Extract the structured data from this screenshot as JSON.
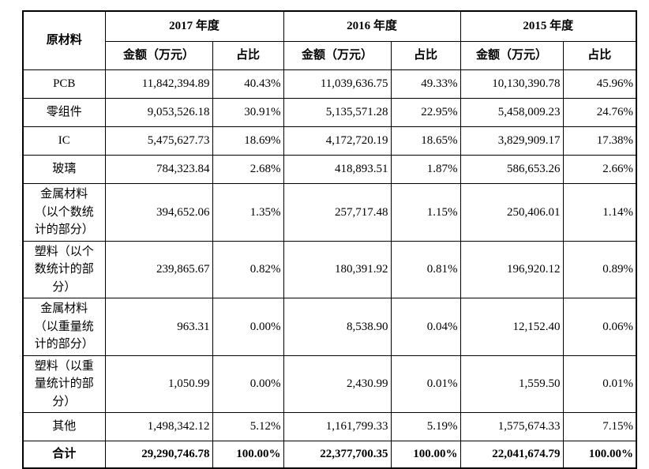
{
  "table": {
    "corner_header": "原材料",
    "year_groups": [
      {
        "year": "2017 年度",
        "amount_header": "金额（万元）",
        "ratio_header": "占比"
      },
      {
        "year": "2016 年度",
        "amount_header": "金额（万元）",
        "ratio_header": "占比"
      },
      {
        "year": "2015 年度",
        "amount_header": "金额（万元）",
        "ratio_header": "占比"
      }
    ],
    "rows": [
      {
        "label": "PCB",
        "values": [
          "11,842,394.89",
          "40.43%",
          "11,039,636.75",
          "49.33%",
          "10,130,390.78",
          "45.96%"
        ]
      },
      {
        "label": "零组件",
        "values": [
          "9,053,526.18",
          "30.91%",
          "5,135,571.28",
          "22.95%",
          "5,458,009.23",
          "24.76%"
        ]
      },
      {
        "label": "IC",
        "values": [
          "5,475,627.73",
          "18.69%",
          "4,172,720.19",
          "18.65%",
          "3,829,909.17",
          "17.38%"
        ]
      },
      {
        "label": "玻璃",
        "values": [
          "784,323.84",
          "2.68%",
          "418,893.51",
          "1.87%",
          "586,653.26",
          "2.66%"
        ]
      },
      {
        "label": "金属材料\n（以个数统\n计的部分）",
        "values": [
          "394,652.06",
          "1.35%",
          "257,717.48",
          "1.15%",
          "250,406.01",
          "1.14%"
        ]
      },
      {
        "label": "塑料（以个\n数统计的部\n分）",
        "values": [
          "239,865.67",
          "0.82%",
          "180,391.92",
          "0.81%",
          "196,920.12",
          "0.89%"
        ]
      },
      {
        "label": "金属材料\n（以重量统\n计的部分）",
        "values": [
          "963.31",
          "0.00%",
          "8,538.90",
          "0.04%",
          "12,152.40",
          "0.06%"
        ]
      },
      {
        "label": "塑料（以重\n量统计的部\n分）",
        "values": [
          "1,050.99",
          "0.00%",
          "2,430.99",
          "0.01%",
          "1,559.50",
          "0.01%"
        ]
      },
      {
        "label": "其他",
        "values": [
          "1,498,342.12",
          "5.12%",
          "1,161,799.33",
          "5.19%",
          "1,575,674.33",
          "7.15%"
        ]
      }
    ],
    "total_row": {
      "label": "合计",
      "values": [
        "29,290,746.78",
        "100.00%",
        "22,377,700.35",
        "100.00%",
        "22,041,674.79",
        "100.00%"
      ]
    }
  },
  "colors": {
    "border": "#000000",
    "text": "#000000",
    "background": "#ffffff"
  }
}
